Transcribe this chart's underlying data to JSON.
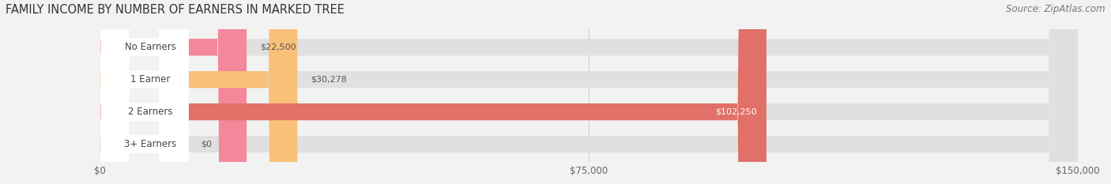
{
  "title": "FAMILY INCOME BY NUMBER OF EARNERS IN MARKED TREE",
  "source": "Source: ZipAtlas.com",
  "categories": [
    "No Earners",
    "1 Earner",
    "2 Earners",
    "3+ Earners"
  ],
  "values": [
    22500,
    30278,
    102250,
    0
  ],
  "bar_colors": [
    "#f4889a",
    "#f9c07a",
    "#e07068",
    "#a8c0e8"
  ],
  "value_labels": [
    "$22,500",
    "$30,278",
    "$102,250",
    "$0"
  ],
  "xlim": [
    0,
    150000
  ],
  "xticks": [
    0,
    75000,
    150000
  ],
  "xtick_labels": [
    "$0",
    "$75,000",
    "$150,000"
  ],
  "background_color": "#f2f2f2",
  "bar_bg_color": "#e0e0e0",
  "bar_height": 0.52,
  "title_fontsize": 10.5,
  "source_fontsize": 8.5,
  "label_fontsize": 8.5,
  "value_fontsize": 8.0
}
